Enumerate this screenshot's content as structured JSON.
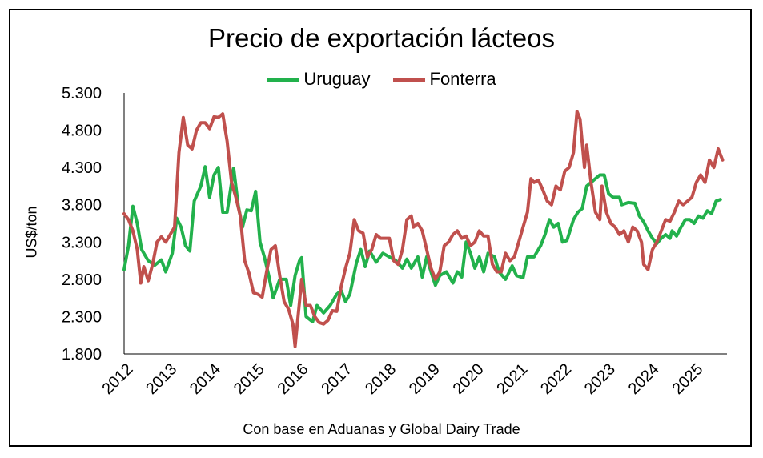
{
  "chart_data": {
    "type": "line",
    "title": "Precio de exportación lácteos",
    "ylabel": "US$/ton",
    "xlabel": "",
    "source": "Con base en Aduanas y Global Dairy Trade",
    "ylim": [
      1800,
      5300
    ],
    "yticks": [
      1800,
      2300,
      2800,
      3300,
      3800,
      4300,
      4800,
      5300
    ],
    "ytick_labels": [
      "1.800",
      "2.300",
      "2.800",
      "3.300",
      "3.800",
      "4.300",
      "4.800",
      "5.300"
    ],
    "xlim": [
      2012,
      2025.75
    ],
    "xticks": [
      "2012",
      "2013",
      "2014",
      "2015",
      "2016",
      "2017",
      "2018",
      "2019",
      "2020",
      "2021",
      "2022",
      "2023",
      "2024",
      "2025"
    ],
    "legend_position": "top-center",
    "grid": false,
    "series": [
      {
        "name": "Uruguay",
        "color": "#22B14C",
        "points": [
          [
            2012.0,
            2930
          ],
          [
            2012.1,
            3250
          ],
          [
            2012.2,
            3780
          ],
          [
            2012.3,
            3550
          ],
          [
            2012.4,
            3200
          ],
          [
            2012.55,
            3050
          ],
          [
            2012.7,
            2990
          ],
          [
            2012.85,
            3060
          ],
          [
            2012.95,
            2900
          ],
          [
            2013.1,
            3150
          ],
          [
            2013.2,
            3620
          ],
          [
            2013.3,
            3500
          ],
          [
            2013.4,
            3250
          ],
          [
            2013.5,
            3180
          ],
          [
            2013.6,
            3850
          ],
          [
            2013.75,
            4050
          ],
          [
            2013.85,
            4310
          ],
          [
            2013.95,
            3900
          ],
          [
            2014.05,
            4200
          ],
          [
            2014.15,
            4300
          ],
          [
            2014.25,
            3700
          ],
          [
            2014.35,
            3700
          ],
          [
            2014.5,
            4290
          ],
          [
            2014.6,
            3800
          ],
          [
            2014.7,
            3500
          ],
          [
            2014.8,
            3730
          ],
          [
            2014.9,
            3720
          ],
          [
            2015.0,
            3980
          ],
          [
            2015.1,
            3300
          ],
          [
            2015.2,
            3100
          ],
          [
            2015.3,
            2850
          ],
          [
            2015.4,
            2550
          ],
          [
            2015.55,
            2800
          ],
          [
            2015.7,
            2800
          ],
          [
            2015.8,
            2450
          ],
          [
            2015.9,
            2850
          ],
          [
            2016.0,
            3050
          ],
          [
            2016.05,
            3090
          ],
          [
            2016.15,
            2300
          ],
          [
            2016.3,
            2230
          ],
          [
            2016.4,
            2450
          ],
          [
            2016.55,
            2350
          ],
          [
            2016.7,
            2450
          ],
          [
            2016.85,
            2600
          ],
          [
            2016.95,
            2650
          ],
          [
            2017.05,
            2500
          ],
          [
            2017.15,
            2600
          ],
          [
            2017.3,
            3020
          ],
          [
            2017.4,
            3200
          ],
          [
            2017.5,
            2970
          ],
          [
            2017.6,
            3180
          ],
          [
            2017.75,
            3030
          ],
          [
            2017.9,
            3150
          ],
          [
            2018.05,
            3100
          ],
          [
            2018.2,
            3050
          ],
          [
            2018.35,
            2950
          ],
          [
            2018.45,
            3070
          ],
          [
            2018.55,
            2950
          ],
          [
            2018.7,
            3100
          ],
          [
            2018.8,
            2830
          ],
          [
            2018.9,
            3100
          ],
          [
            2019.0,
            2900
          ],
          [
            2019.1,
            2720
          ],
          [
            2019.2,
            2850
          ],
          [
            2019.35,
            2900
          ],
          [
            2019.5,
            2750
          ],
          [
            2019.6,
            2900
          ],
          [
            2019.7,
            2830
          ],
          [
            2019.8,
            3300
          ],
          [
            2019.9,
            3150
          ],
          [
            2020.0,
            2950
          ],
          [
            2020.1,
            3100
          ],
          [
            2020.2,
            2900
          ],
          [
            2020.3,
            3150
          ],
          [
            2020.45,
            3100
          ],
          [
            2020.55,
            2900
          ],
          [
            2020.7,
            2800
          ],
          [
            2020.85,
            2980
          ],
          [
            2020.95,
            2850
          ],
          [
            2021.1,
            2820
          ],
          [
            2021.2,
            3100
          ],
          [
            2021.35,
            3100
          ],
          [
            2021.5,
            3250
          ],
          [
            2021.6,
            3400
          ],
          [
            2021.7,
            3600
          ],
          [
            2021.8,
            3500
          ],
          [
            2021.9,
            3550
          ],
          [
            2022.0,
            3300
          ],
          [
            2022.1,
            3320
          ],
          [
            2022.25,
            3600
          ],
          [
            2022.35,
            3700
          ],
          [
            2022.45,
            3750
          ],
          [
            2022.55,
            4050
          ],
          [
            2022.65,
            4100
          ],
          [
            2022.75,
            4150
          ],
          [
            2022.85,
            4200
          ],
          [
            2022.95,
            4200
          ],
          [
            2023.05,
            3950
          ],
          [
            2023.15,
            3900
          ],
          [
            2023.3,
            3900
          ],
          [
            2023.35,
            3800
          ],
          [
            2023.5,
            3830
          ],
          [
            2023.65,
            3820
          ],
          [
            2023.75,
            3650
          ],
          [
            2023.85,
            3570
          ],
          [
            2023.95,
            3450
          ],
          [
            2024.05,
            3350
          ],
          [
            2024.15,
            3280
          ],
          [
            2024.25,
            3350
          ],
          [
            2024.35,
            3400
          ],
          [
            2024.45,
            3350
          ],
          [
            2024.5,
            3450
          ],
          [
            2024.6,
            3380
          ],
          [
            2024.7,
            3500
          ],
          [
            2024.8,
            3600
          ],
          [
            2024.9,
            3600
          ],
          [
            2025.0,
            3550
          ],
          [
            2025.1,
            3650
          ],
          [
            2025.2,
            3620
          ],
          [
            2025.3,
            3720
          ],
          [
            2025.4,
            3680
          ],
          [
            2025.5,
            3850
          ],
          [
            2025.6,
            3870
          ]
        ]
      },
      {
        "name": "Fonterra",
        "color": "#C0504D",
        "points": [
          [
            2012.0,
            3680
          ],
          [
            2012.1,
            3600
          ],
          [
            2012.2,
            3450
          ],
          [
            2012.3,
            3200
          ],
          [
            2012.38,
            2750
          ],
          [
            2012.45,
            2970
          ],
          [
            2012.55,
            2780
          ],
          [
            2012.65,
            3000
          ],
          [
            2012.75,
            3300
          ],
          [
            2012.85,
            3370
          ],
          [
            2012.95,
            3300
          ],
          [
            2013.05,
            3400
          ],
          [
            2013.15,
            3500
          ],
          [
            2013.25,
            4500
          ],
          [
            2013.35,
            4970
          ],
          [
            2013.45,
            4600
          ],
          [
            2013.55,
            4550
          ],
          [
            2013.65,
            4800
          ],
          [
            2013.75,
            4900
          ],
          [
            2013.85,
            4900
          ],
          [
            2013.95,
            4820
          ],
          [
            2014.05,
            4980
          ],
          [
            2014.15,
            4970
          ],
          [
            2014.25,
            5020
          ],
          [
            2014.35,
            4650
          ],
          [
            2014.45,
            4100
          ],
          [
            2014.55,
            3900
          ],
          [
            2014.65,
            3650
          ],
          [
            2014.75,
            3050
          ],
          [
            2014.85,
            2880
          ],
          [
            2014.95,
            2620
          ],
          [
            2015.05,
            2600
          ],
          [
            2015.15,
            2560
          ],
          [
            2015.25,
            2900
          ],
          [
            2015.35,
            3200
          ],
          [
            2015.45,
            3250
          ],
          [
            2015.55,
            2850
          ],
          [
            2015.65,
            2500
          ],
          [
            2015.75,
            2400
          ],
          [
            2015.85,
            2200
          ],
          [
            2015.9,
            1900
          ],
          [
            2016.0,
            2500
          ],
          [
            2016.05,
            2800
          ],
          [
            2016.15,
            2450
          ],
          [
            2016.25,
            2450
          ],
          [
            2016.35,
            2300
          ],
          [
            2016.45,
            2220
          ],
          [
            2016.55,
            2200
          ],
          [
            2016.65,
            2250
          ],
          [
            2016.75,
            2380
          ],
          [
            2016.85,
            2370
          ],
          [
            2016.95,
            2700
          ],
          [
            2017.05,
            2950
          ],
          [
            2017.15,
            3150
          ],
          [
            2017.25,
            3600
          ],
          [
            2017.35,
            3450
          ],
          [
            2017.45,
            3420
          ],
          [
            2017.55,
            3100
          ],
          [
            2017.65,
            3200
          ],
          [
            2017.75,
            3400
          ],
          [
            2017.85,
            3350
          ],
          [
            2017.95,
            3350
          ],
          [
            2018.05,
            3350
          ],
          [
            2018.15,
            3050
          ],
          [
            2018.25,
            3000
          ],
          [
            2018.35,
            3200
          ],
          [
            2018.45,
            3600
          ],
          [
            2018.55,
            3650
          ],
          [
            2018.6,
            3500
          ],
          [
            2018.7,
            3550
          ],
          [
            2018.8,
            3450
          ],
          [
            2018.9,
            3200
          ],
          [
            2019.0,
            2950
          ],
          [
            2019.1,
            2800
          ],
          [
            2019.2,
            2900
          ],
          [
            2019.3,
            3250
          ],
          [
            2019.4,
            3300
          ],
          [
            2019.5,
            3400
          ],
          [
            2019.6,
            3450
          ],
          [
            2019.7,
            3350
          ],
          [
            2019.8,
            3380
          ],
          [
            2019.9,
            3250
          ],
          [
            2020.0,
            3300
          ],
          [
            2020.1,
            3450
          ],
          [
            2020.2,
            3380
          ],
          [
            2020.3,
            3380
          ],
          [
            2020.4,
            3000
          ],
          [
            2020.5,
            2900
          ],
          [
            2020.6,
            2900
          ],
          [
            2020.7,
            3150
          ],
          [
            2020.8,
            3050
          ],
          [
            2020.9,
            3100
          ],
          [
            2021.0,
            3300
          ],
          [
            2021.1,
            3500
          ],
          [
            2021.2,
            3700
          ],
          [
            2021.28,
            4150
          ],
          [
            2021.35,
            4100
          ],
          [
            2021.45,
            4130
          ],
          [
            2021.55,
            4000
          ],
          [
            2021.65,
            3850
          ],
          [
            2021.75,
            3800
          ],
          [
            2021.85,
            4050
          ],
          [
            2021.95,
            4000
          ],
          [
            2022.05,
            4250
          ],
          [
            2022.15,
            4300
          ],
          [
            2022.25,
            4500
          ],
          [
            2022.33,
            5050
          ],
          [
            2022.4,
            4950
          ],
          [
            2022.5,
            4300
          ],
          [
            2022.55,
            4600
          ],
          [
            2022.65,
            4100
          ],
          [
            2022.75,
            3700
          ],
          [
            2022.85,
            3600
          ],
          [
            2022.9,
            4050
          ],
          [
            2023.0,
            3700
          ],
          [
            2023.1,
            3550
          ],
          [
            2023.2,
            3500
          ],
          [
            2023.3,
            3400
          ],
          [
            2023.4,
            3450
          ],
          [
            2023.5,
            3300
          ],
          [
            2023.6,
            3500
          ],
          [
            2023.7,
            3450
          ],
          [
            2023.8,
            3300
          ],
          [
            2023.85,
            3000
          ],
          [
            2023.95,
            2930
          ],
          [
            2024.05,
            3200
          ],
          [
            2024.15,
            3300
          ],
          [
            2024.25,
            3450
          ],
          [
            2024.35,
            3600
          ],
          [
            2024.45,
            3580
          ],
          [
            2024.55,
            3700
          ],
          [
            2024.65,
            3850
          ],
          [
            2024.75,
            3800
          ],
          [
            2024.85,
            3850
          ],
          [
            2024.95,
            3900
          ],
          [
            2025.05,
            4100
          ],
          [
            2025.15,
            4200
          ],
          [
            2025.25,
            4100
          ],
          [
            2025.35,
            4400
          ],
          [
            2025.45,
            4300
          ],
          [
            2025.55,
            4550
          ],
          [
            2025.65,
            4400
          ]
        ]
      }
    ]
  }
}
